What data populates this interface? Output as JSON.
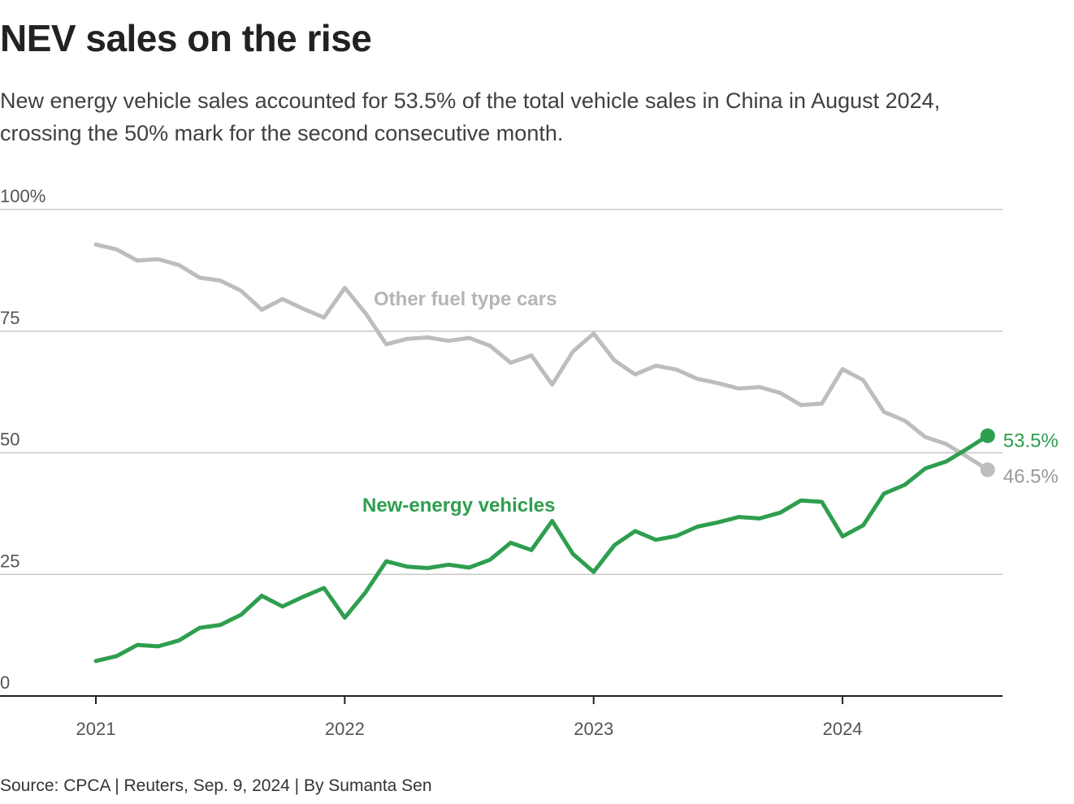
{
  "title": "NEV sales on the rise",
  "subtitle": "New energy vehicle sales accounted for 53.5% of the total vehicle sales in China in August 2024, crossing the 50% mark for the second consecutive month.",
  "source": "Source: CPCA | Reuters, Sep. 9, 2024 | By Sumanta Sen",
  "colors": {
    "nev": "#2e9e4f",
    "other": "#bdbdbd",
    "grid": "#c8c8c8",
    "axis": "#222222",
    "tick_text": "#555555"
  },
  "chart_data": {
    "type": "line",
    "title": "NEV sales on the rise",
    "xlabel": "",
    "ylabel": "",
    "ylim": [
      0,
      100
    ],
    "y_ticks": [
      {
        "value": 0,
        "label": "0"
      },
      {
        "value": 25,
        "label": "25"
      },
      {
        "value": 50,
        "label": "50"
      },
      {
        "value": 75,
        "label": "75"
      },
      {
        "value": 100,
        "label": "100%"
      }
    ],
    "x_ticks": [
      {
        "index": 0,
        "label": "2021"
      },
      {
        "index": 12,
        "label": "2022"
      },
      {
        "index": 24,
        "label": "2023"
      },
      {
        "index": 36,
        "label": "2024"
      }
    ],
    "x_start": "Jan 2021",
    "x_end": "Aug 2024",
    "grid": true,
    "series": [
      {
        "name": "Other fuel type cars",
        "color": "#bdbdbd",
        "end_label": "46.5%",
        "values": [
          92.8,
          91.8,
          89.5,
          89.8,
          88.6,
          86.0,
          85.4,
          83.3,
          79.4,
          81.6,
          79.6,
          77.8,
          83.9,
          78.7,
          72.3,
          73.4,
          73.7,
          73.0,
          73.6,
          72.0,
          68.5,
          70.0,
          64.0,
          70.8,
          74.5,
          69.0,
          66.1,
          67.9,
          67.1,
          65.2,
          64.3,
          63.2,
          63.5,
          62.3,
          59.8,
          60.1,
          67.2,
          64.9,
          58.4,
          56.6,
          53.2,
          51.8,
          49.2,
          46.5
        ]
      },
      {
        "name": "New-energy vehicles",
        "color": "#2e9e4f",
        "end_label": "53.5%",
        "values": [
          7.2,
          8.2,
          10.5,
          10.2,
          11.4,
          14.0,
          14.6,
          16.7,
          20.6,
          18.4,
          20.4,
          22.2,
          16.1,
          21.3,
          27.7,
          26.6,
          26.3,
          27.0,
          26.4,
          28.0,
          31.5,
          30.0,
          36.0,
          29.2,
          25.5,
          31.0,
          33.9,
          32.1,
          32.9,
          34.8,
          35.7,
          36.8,
          36.5,
          37.7,
          40.2,
          39.9,
          32.8,
          35.1,
          41.6,
          43.4,
          46.8,
          48.2,
          50.8,
          53.5
        ]
      }
    ],
    "annotations": [
      {
        "text": "Other fuel type cars",
        "series": 0
      },
      {
        "text": "New-energy vehicles",
        "series": 1
      }
    ]
  }
}
